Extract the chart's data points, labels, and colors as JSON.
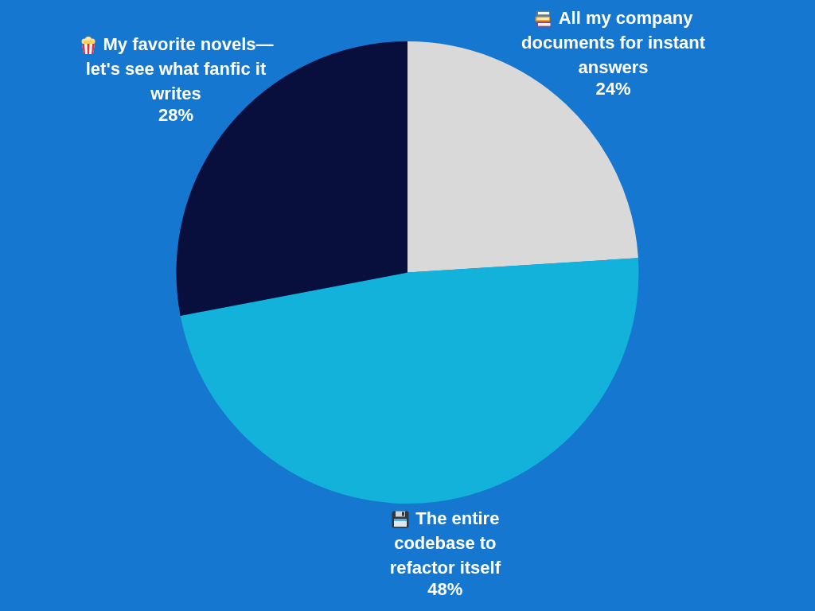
{
  "chart_data": {
    "type": "pie",
    "categories": [
      "All my company documents for instant answers",
      "The entire codebase to refactor itself",
      "My favorite novels—let's see what fanfic it writes"
    ],
    "values": [
      24,
      48,
      28
    ],
    "value_labels": [
      "24%",
      "48%",
      "28%"
    ],
    "colors": [
      "#d9d9d9",
      "#12b2da",
      "#090f3d"
    ]
  }
}
